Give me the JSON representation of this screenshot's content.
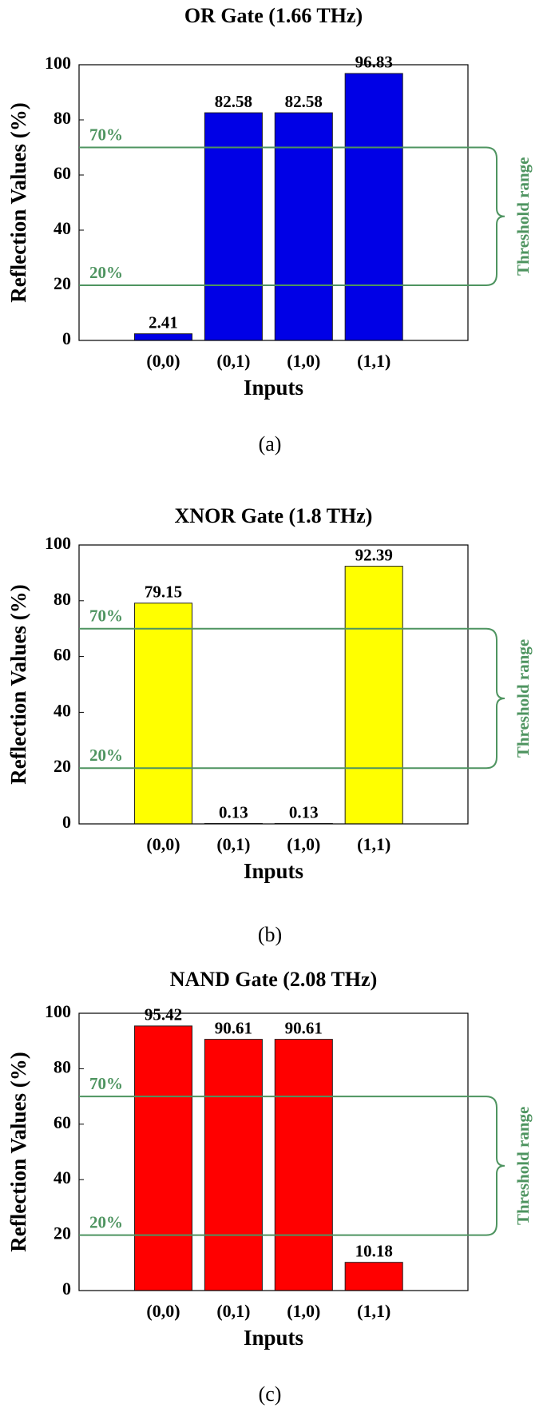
{
  "chart_data": [
    {
      "type": "bar",
      "title": "OR Gate (1.66 THz)",
      "categories": [
        "(0,0)",
        "(0,1)",
        "(1,0)",
        "(1,1)"
      ],
      "values": [
        2.41,
        82.58,
        82.58,
        96.83
      ],
      "color": "#0000e6",
      "xlabel": "Inputs",
      "ylabel": "Reflection Values (%)",
      "ylim": [
        0,
        100
      ],
      "yticks": [
        0,
        20,
        40,
        60,
        80,
        100
      ],
      "thresholds": [
        {
          "value": 70,
          "label": "70%"
        },
        {
          "value": 20,
          "label": "20%"
        }
      ],
      "threshold_label": "Threshold range",
      "caption": "(a)"
    },
    {
      "type": "bar",
      "title": "XNOR Gate (1.8 THz)",
      "categories": [
        "(0,0)",
        "(0,1)",
        "(1,0)",
        "(1,1)"
      ],
      "values": [
        79.15,
        0.13,
        0.13,
        92.39
      ],
      "color": "#ffff00",
      "xlabel": "Inputs",
      "ylabel": "Reflection Values (%)",
      "ylim": [
        0,
        100
      ],
      "yticks": [
        0,
        20,
        40,
        60,
        80,
        100
      ],
      "thresholds": [
        {
          "value": 70,
          "label": "70%"
        },
        {
          "value": 20,
          "label": "20%"
        }
      ],
      "threshold_label": "Threshold range",
      "caption": "(b)"
    },
    {
      "type": "bar",
      "title": "NAND Gate (2.08 THz)",
      "categories": [
        "(0,0)",
        "(0,1)",
        "(1,0)",
        "(1,1)"
      ],
      "values": [
        95.42,
        90.61,
        90.61,
        10.18
      ],
      "color": "#ff0000",
      "xlabel": "Inputs",
      "ylabel": "Reflection Values (%)",
      "ylim": [
        0,
        100
      ],
      "yticks": [
        0,
        20,
        40,
        60,
        80,
        100
      ],
      "thresholds": [
        {
          "value": 70,
          "label": "70%"
        },
        {
          "value": 20,
          "label": "20%"
        }
      ],
      "threshold_label": "Threshold range",
      "caption": "(c)"
    }
  ]
}
